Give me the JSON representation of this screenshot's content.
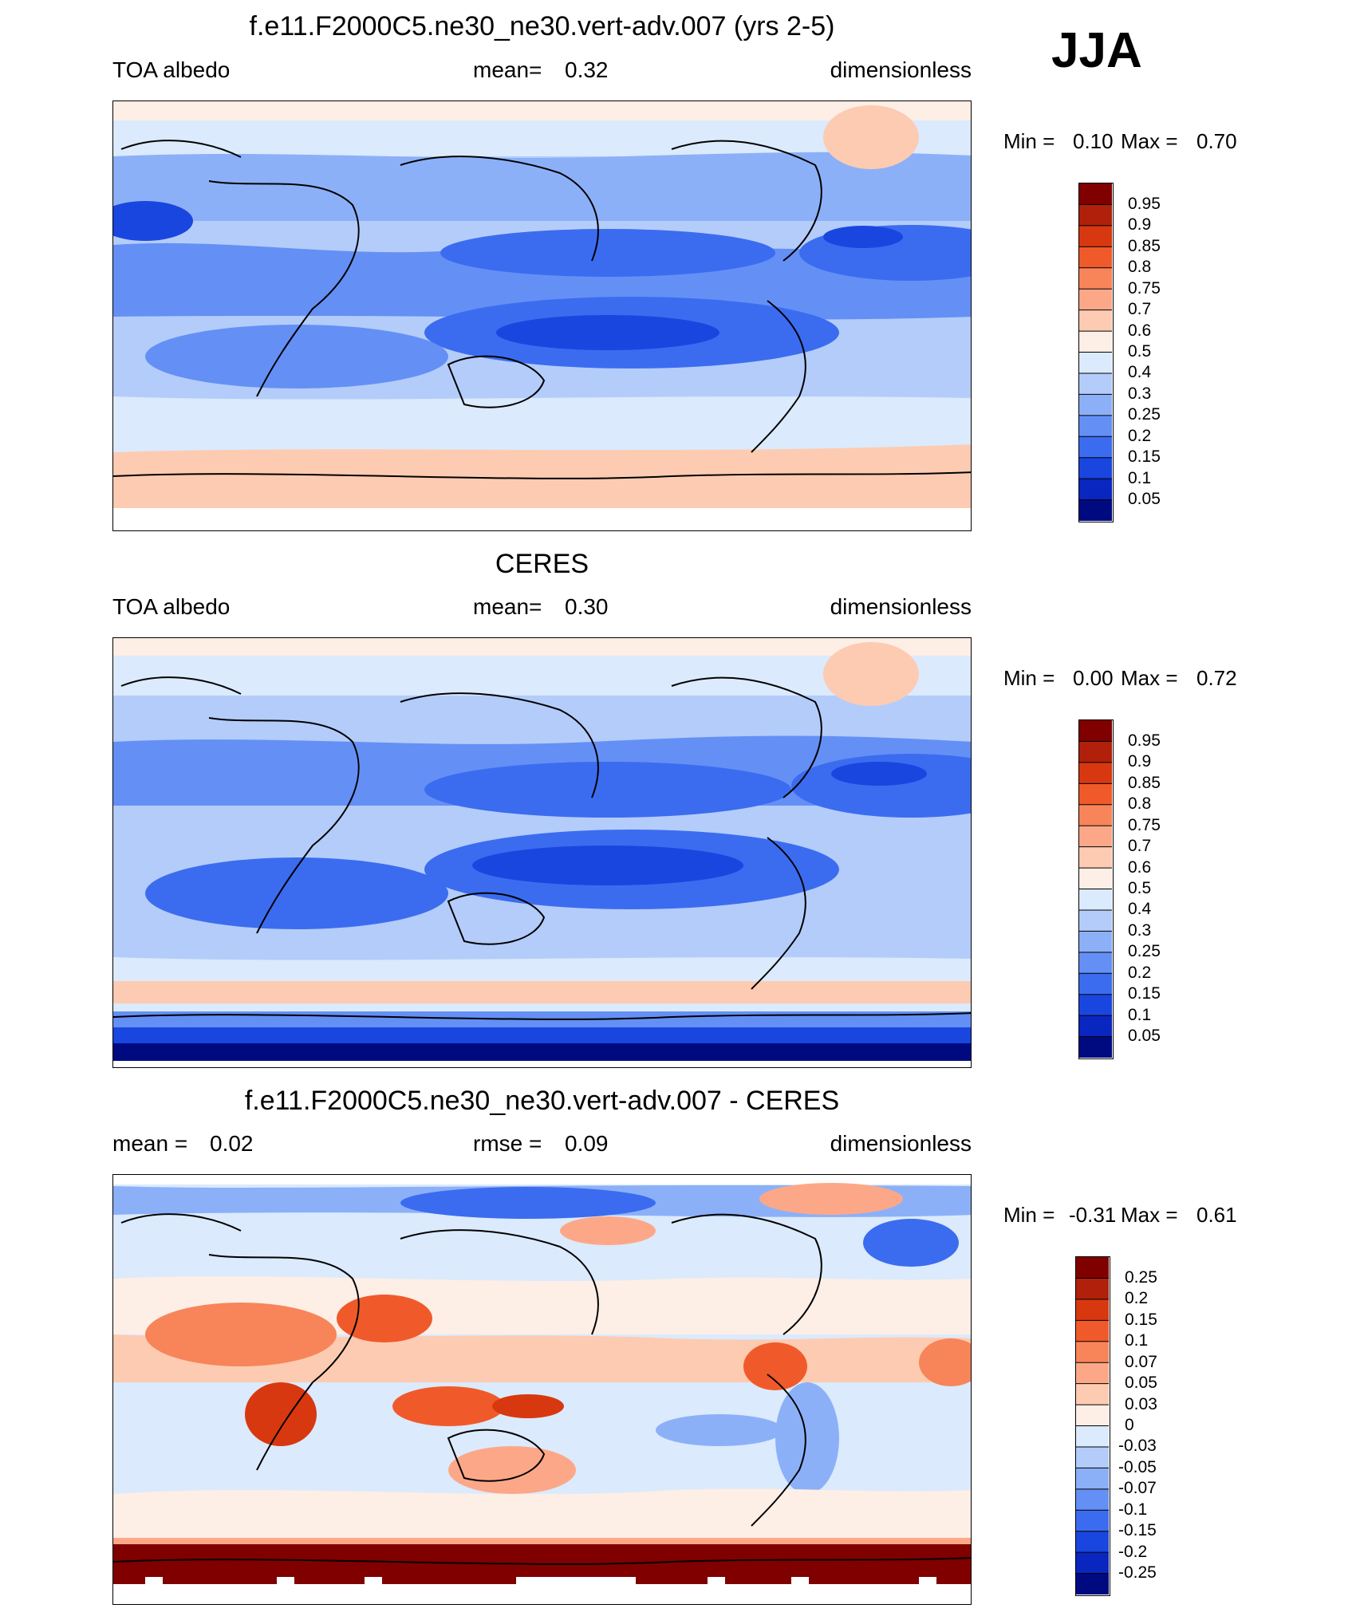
{
  "season": "JJA",
  "panels": [
    {
      "title": "f.e11.F2000C5.ne30_ne30.vert-adv.007 (yrs 2-5)",
      "left": "TOA albedo",
      "center_label": "mean=",
      "center_value": "0.32",
      "right": "dimensionless",
      "min_label": "Min =",
      "min_value": "0.10",
      "max_label": "Max =",
      "max_value": "0.70",
      "colorbar": [
        "0.95",
        "0.9",
        "0.85",
        "0.8",
        "0.75",
        "0.7",
        "0.6",
        "0.5",
        "0.4",
        "0.3",
        "0.25",
        "0.2",
        "0.15",
        "0.1",
        "0.05"
      ]
    },
    {
      "title": "CERES",
      "left": "TOA albedo",
      "center_label": "mean=",
      "center_value": "0.30",
      "right": "dimensionless",
      "min_label": "Min =",
      "min_value": "0.00",
      "max_label": "Max =",
      "max_value": "0.72",
      "colorbar": [
        "0.95",
        "0.9",
        "0.85",
        "0.8",
        "0.75",
        "0.7",
        "0.6",
        "0.5",
        "0.4",
        "0.3",
        "0.25",
        "0.2",
        "0.15",
        "0.1",
        "0.05"
      ]
    },
    {
      "title": "f.e11.F2000C5.ne30_ne30.vert-adv.007 - CERES",
      "left_label": "mean =",
      "left_value": "0.02",
      "center_label": "rmse =",
      "center_value": "0.09",
      "right": "dimensionless",
      "min_label": "Min =",
      "min_value": "-0.31",
      "max_label": "Max =",
      "max_value": "0.61",
      "colorbar": [
        "0.25",
        "0.2",
        "0.15",
        "0.1",
        "0.07",
        "0.05",
        "0.03",
        "0",
        "-0.03",
        "-0.05",
        "-0.07",
        "-0.1",
        "-0.15",
        "-0.2",
        "-0.25"
      ]
    }
  ],
  "colors": {
    "colorbar_top_to_bottom": [
      "#800000",
      "#b0200a",
      "#d8380f",
      "#f05a2a",
      "#f8845a",
      "#fca888",
      "#fdcbb2",
      "#fdeee6",
      "#dbeafc",
      "#b4ccfa",
      "#8cb0f8",
      "#6490f5",
      "#3b6cf0",
      "#1a46e0",
      "#0a26c0",
      "#000a80"
    ]
  },
  "chart_data": [
    {
      "type": "heatmap",
      "title": "f.e11.F2000C5.ne30_ne30.vert-adv.007 (yrs 2-5)",
      "subtitle_left": "TOA albedo",
      "mean": 0.32,
      "units": "dimensionless",
      "min": 0.1,
      "max": 0.7,
      "levels": [
        0.05,
        0.1,
        0.15,
        0.2,
        0.25,
        0.3,
        0.4,
        0.5,
        0.6,
        0.7,
        0.75,
        0.8,
        0.85,
        0.9,
        0.95
      ],
      "season": "JJA"
    },
    {
      "type": "heatmap",
      "title": "CERES",
      "subtitle_left": "TOA albedo",
      "mean": 0.3,
      "units": "dimensionless",
      "min": 0.0,
      "max": 0.72,
      "levels": [
        0.05,
        0.1,
        0.15,
        0.2,
        0.25,
        0.3,
        0.4,
        0.5,
        0.6,
        0.7,
        0.75,
        0.8,
        0.85,
        0.9,
        0.95
      ]
    },
    {
      "type": "heatmap",
      "title": "f.e11.F2000C5.ne30_ne30.vert-adv.007 - CERES",
      "mean": 0.02,
      "rmse": 0.09,
      "units": "dimensionless",
      "min": -0.31,
      "max": 0.61,
      "levels": [
        -0.25,
        -0.2,
        -0.15,
        -0.1,
        -0.07,
        -0.05,
        -0.03,
        0,
        0.03,
        0.05,
        0.07,
        0.1,
        0.15,
        0.2,
        0.25
      ]
    }
  ]
}
